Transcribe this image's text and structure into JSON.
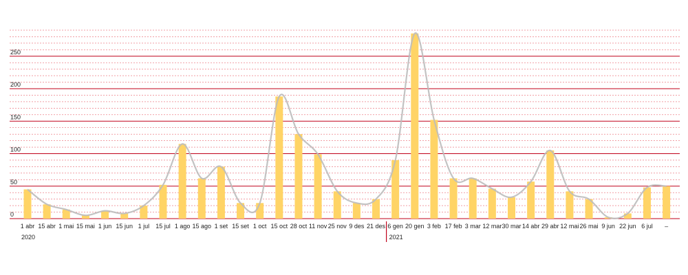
{
  "chart_data": {
    "type": "bar",
    "categories": [
      "1 abr",
      "15 abr",
      "1 mai",
      "15 mai",
      "1 jun",
      "15 jun",
      "1 jul",
      "15 jul",
      "1 ago",
      "15 ago",
      "1 set",
      "15 set",
      "1 oct",
      "15 oct",
      "28 oct",
      "11 nov",
      "25 nov",
      "9 des",
      "21 des",
      "6 gen",
      "20 gen",
      "3 feb",
      "17 feb",
      "3 mar",
      "12 mar",
      "30 mar",
      "14 abr",
      "29 abr",
      "12 mai",
      "26 mai",
      "9 jun",
      "22 jun",
      "6 jul",
      "–"
    ],
    "values": [
      45,
      22,
      14,
      5,
      12,
      8,
      20,
      52,
      115,
      62,
      80,
      24,
      24,
      188,
      130,
      99,
      42,
      24,
      30,
      90,
      285,
      152,
      62,
      62,
      46,
      33,
      57,
      105,
      42,
      30,
      2,
      8,
      48,
      50
    ],
    "year_labels": [
      {
        "label": "2020",
        "index": 0
      },
      {
        "label": "2021",
        "index": 19
      }
    ],
    "y_ticks": [
      0,
      50,
      100,
      150,
      200,
      250
    ],
    "ylim": [
      0,
      290
    ],
    "title": "",
    "xlabel": "",
    "ylabel": "",
    "grid": true,
    "colors": {
      "bar": "#ffd466",
      "trend": "#bdbdbd",
      "major_grid": "#c0001a",
      "minor_grid": "#e9646f",
      "year_divider": "#c0001a"
    }
  }
}
